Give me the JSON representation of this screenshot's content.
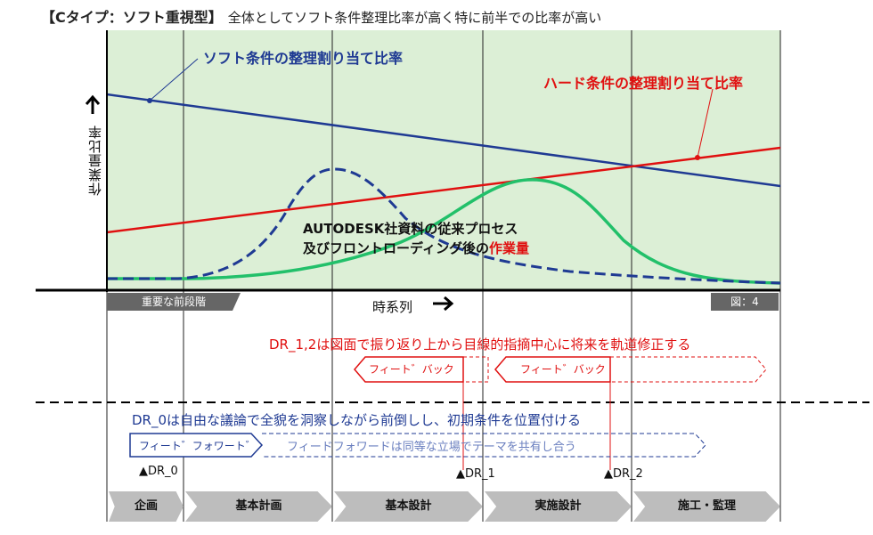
{
  "title": {
    "main": "【Cタイプ：ソフト重視型】",
    "sub": "全体としてソフト条件整理比率が高く特に前半での比率が高い"
  },
  "chart_labels": {
    "soft_ratio": "ソフト条件の整理割り当て比率",
    "hard_ratio": "ハード条件の整理割り当て比率",
    "y_axis": "作業量比率",
    "x_axis": "時系列",
    "annotation_line1": "AUTODESK社資料の従来プロセス",
    "annotation_line2_prefix": "及びフロントローディング後の",
    "annotation_line2_emph": "作業量",
    "pre_stage": "重要な前段階",
    "figure_no": "図：4"
  },
  "notes": {
    "dr12": "DR_1,2は図面で振り返り上から目線的指摘中心に将来を軌道修正する",
    "dr0": "DR_0は自由な議論で全貌を洞察しながら前倒しし、初期条件を位置付ける",
    "feedback_1": "フィート゛バック",
    "feedback_2": "フィート゛バック",
    "feedforward": "フィート゛フォワート゛",
    "feedforward_desc": "フィードフォワードは同等な立場でテーマを共有し合う"
  },
  "milestones": [
    {
      "label": "▲DR_0"
    },
    {
      "label": "▲DR_1"
    },
    {
      "label": "▲DR_2"
    }
  ],
  "phases": [
    {
      "label": "企画"
    },
    {
      "label": "基本計画"
    },
    {
      "label": "基本設計"
    },
    {
      "label": "実施設計"
    },
    {
      "label": "施工・監理"
    }
  ],
  "colors": {
    "plot_bg": "#dcefd6",
    "soft_line": "#1f3a93",
    "hard_line": "#e01010",
    "green_curve": "#22c06a",
    "phase_bg": "#bdbdbd",
    "tag_bg": "#666666"
  }
}
